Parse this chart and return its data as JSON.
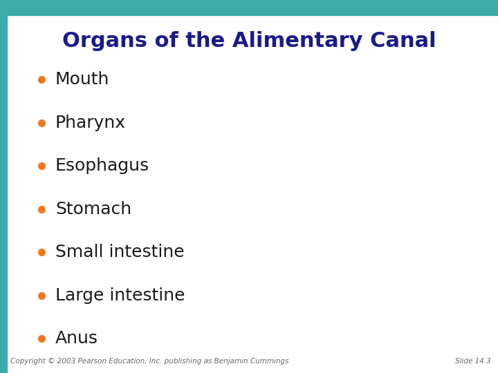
{
  "title": "Organs of the Alimentary Canal",
  "title_color": "#1a1a8c",
  "title_fontsize": 22,
  "bullet_items": [
    "Mouth",
    "Pharynx",
    "Esophagus",
    "Stomach",
    "Small intestine",
    "Large intestine",
    "Anus"
  ],
  "bullet_color": "#f07820",
  "text_color": "#1a1a1a",
  "text_fontsize": 18,
  "background_color": "#ffffff",
  "top_bar_color": "#3aada8",
  "left_bar_color": "#3aada8",
  "footer_left": "Copyright © 2003 Pearson Education, Inc. publishing as Benjamin Cummings",
  "footer_right": "Slide 14.3",
  "footer_fontsize": 7.5,
  "footer_color": "#666666"
}
